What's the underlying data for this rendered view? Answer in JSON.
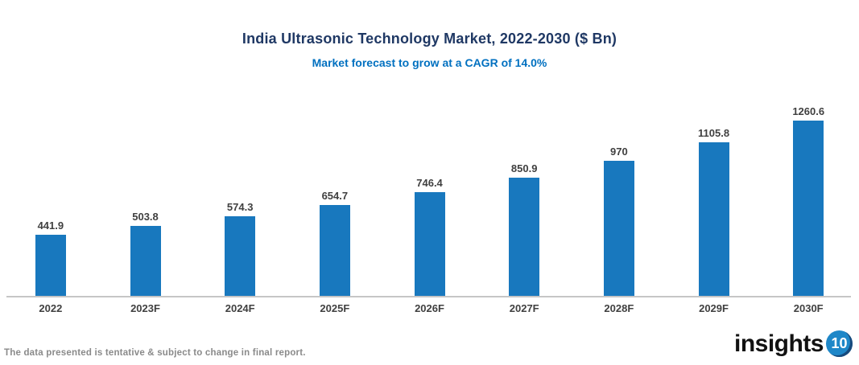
{
  "header": {
    "title": "India Ultrasonic Technology Market, 2022-2030 ($ Bn)",
    "subtitle": "Market forecast to grow at a CAGR of 14.0%"
  },
  "chart_data": {
    "type": "bar",
    "title": "India Ultrasonic Technology Market, 2022-2030 ($ Bn)",
    "subtitle": "Market forecast to grow at a CAGR of 14.0%",
    "categories": [
      "2022",
      "2023F",
      "2024F",
      "2025F",
      "2026F",
      "2027F",
      "2028F",
      "2029F",
      "2030F"
    ],
    "values": [
      441.9,
      503.8,
      574.3,
      654.7,
      746.4,
      850.9,
      970,
      1105.8,
      1260.6
    ],
    "value_labels": [
      "441.9",
      "503.8",
      "574.3",
      "654.7",
      "746.4",
      "850.9",
      "970",
      "1105.8",
      "1260.6"
    ],
    "xlabel": "",
    "ylabel": "",
    "ylim": [
      0,
      1300
    ],
    "grid": false,
    "legend": false,
    "bar_color": "#1878BE",
    "value_label_color": "#404040",
    "axis_line_color": "#C6C6C6"
  },
  "footer": {
    "disclaimer": "The data presented is tentative & subject to change in final report.",
    "logo_text": "insights",
    "logo_badge": "10"
  },
  "colors": {
    "title": "#1F3864",
    "subtitle": "#0070C0",
    "bar": "#1878BE",
    "disclaimer": "#8A8A8A",
    "logo_badge_bg": "#1E87C8"
  }
}
